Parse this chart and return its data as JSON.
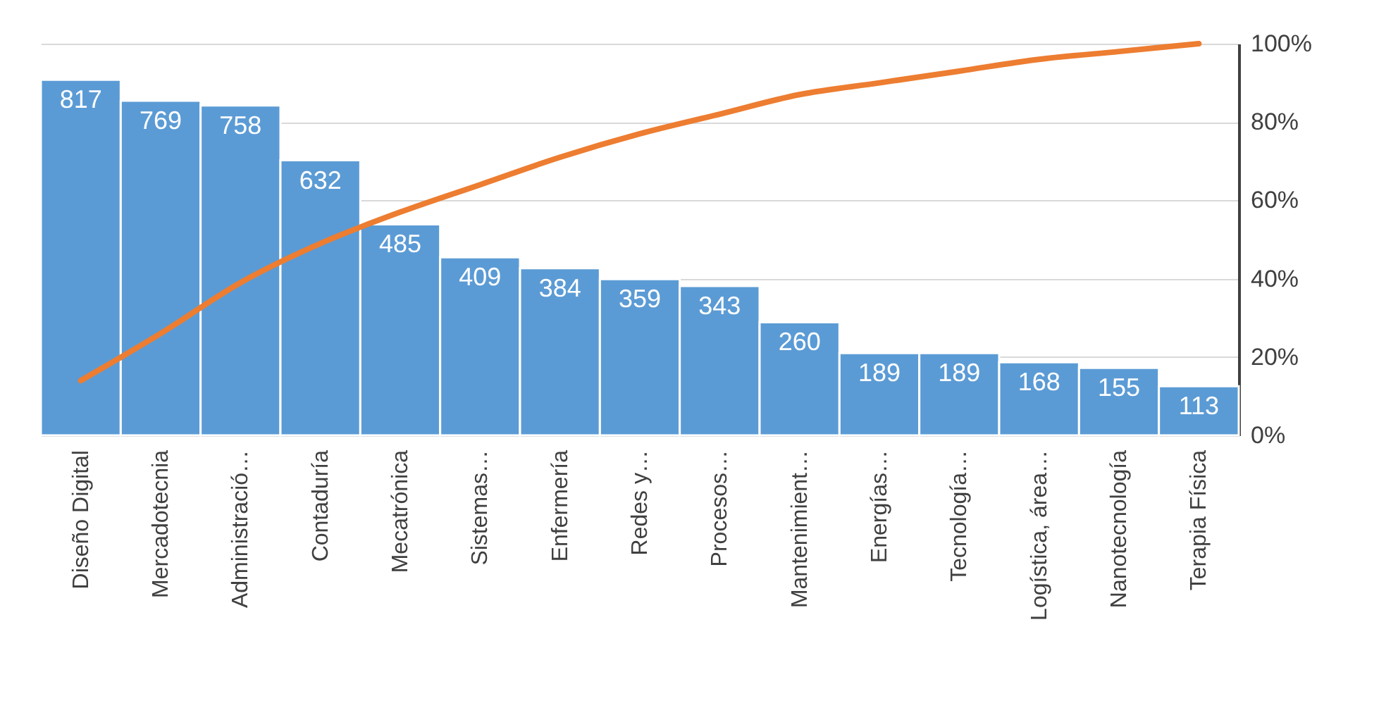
{
  "chart_data": {
    "type": "bar",
    "categories": [
      "Diseño Digital",
      "Mercadotecnia",
      "Administració…",
      "Contaduría",
      "Mecatrónica",
      "Sistemas…",
      "Enfermería",
      "Redes y…",
      "Procesos…",
      "Mantenimient…",
      "Energías…",
      "Tecnología…",
      "Logística, área…",
      "Nanotecnología",
      "Terapia Física"
    ],
    "series": [
      {
        "color": "#5b9bd5",
        "values": [
          817,
          769,
          758,
          632,
          485,
          409,
          384,
          359,
          343,
          260,
          189,
          189,
          168,
          155,
          113
        ],
        "value_labels": [
          "817",
          "769",
          "758",
          "632",
          "485",
          "409",
          "384",
          "359",
          "343",
          "260",
          "189",
          "189",
          "168",
          "155",
          "113"
        ]
      },
      {
        "type": "line",
        "axis": "y2",
        "color": "#ed7d31",
        "values": [
          14,
          26,
          39,
          49,
          57,
          64,
          71,
          77,
          82,
          87,
          90,
          93,
          96,
          98,
          100
        ]
      }
    ],
    "y2lim": [
      0,
      100
    ],
    "y2ticks": [
      {
        "value": 0,
        "label": "0%"
      },
      {
        "value": 20,
        "label": "20%"
      },
      {
        "value": 40,
        "label": "40%"
      },
      {
        "value": 60,
        "label": "60%"
      },
      {
        "value": 80,
        "label": "80%"
      },
      {
        "value": 100,
        "label": "100%"
      }
    ],
    "grid": true
  }
}
